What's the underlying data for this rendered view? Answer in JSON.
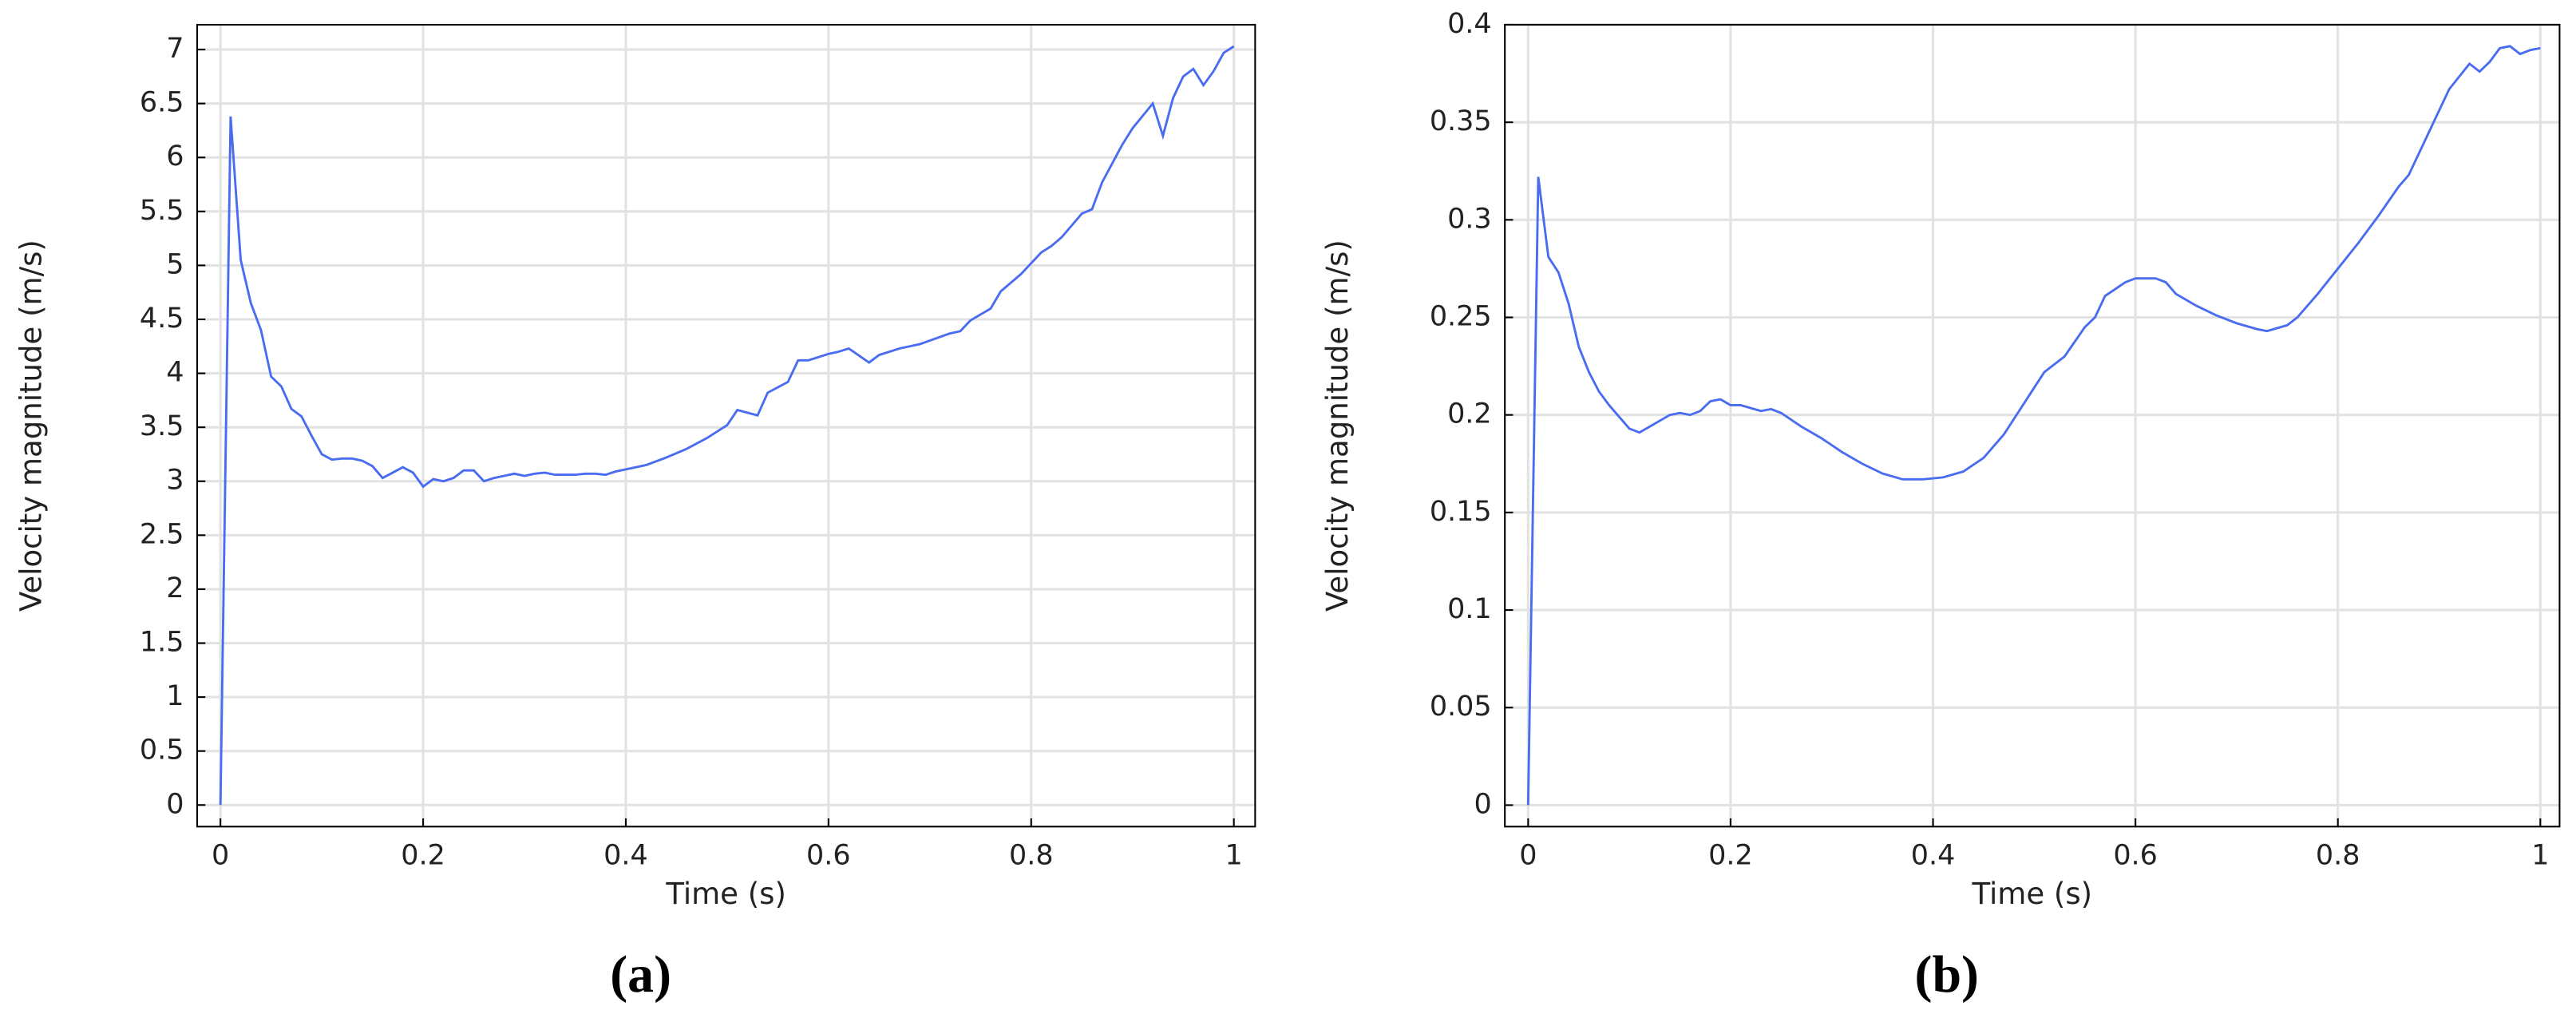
{
  "chart_data": [
    {
      "type": "line",
      "caption": "(a)",
      "xlabel": "Time (s)",
      "ylabel": "Velocity magnitude (m/s)",
      "color": "#4a6cf0",
      "grid": true,
      "xlim": [
        -0.023,
        1.021
      ],
      "ylim": [
        -0.2,
        7.23
      ],
      "xticks": [
        0,
        0.2,
        0.4,
        0.6,
        0.8,
        1
      ],
      "yticks": [
        0,
        0.5,
        1,
        1.5,
        2,
        2.5,
        3,
        3.5,
        4,
        4.5,
        5,
        5.5,
        6,
        6.5,
        7
      ],
      "x": [
        0,
        0.01,
        0.02,
        0.03,
        0.04,
        0.05,
        0.06,
        0.07,
        0.08,
        0.09,
        0.1,
        0.11,
        0.12,
        0.13,
        0.14,
        0.15,
        0.16,
        0.17,
        0.18,
        0.19,
        0.2,
        0.21,
        0.22,
        0.23,
        0.24,
        0.25,
        0.26,
        0.27,
        0.28,
        0.29,
        0.3,
        0.31,
        0.32,
        0.33,
        0.34,
        0.35,
        0.36,
        0.37,
        0.38,
        0.39,
        0.4,
        0.42,
        0.44,
        0.46,
        0.48,
        0.5,
        0.51,
        0.53,
        0.54,
        0.56,
        0.57,
        0.58,
        0.6,
        0.61,
        0.62,
        0.64,
        0.65,
        0.67,
        0.69,
        0.72,
        0.73,
        0.74,
        0.76,
        0.77,
        0.79,
        0.81,
        0.82,
        0.83,
        0.85,
        0.86,
        0.87,
        0.89,
        0.9,
        0.92,
        0.93,
        0.94,
        0.95,
        0.96,
        0.97,
        0.98,
        0.99,
        1.0
      ],
      "values": [
        0,
        6.38,
        5.05,
        4.65,
        4.4,
        3.97,
        3.88,
        3.67,
        3.6,
        3.42,
        3.25,
        3.2,
        3.21,
        3.21,
        3.19,
        3.14,
        3.03,
        3.08,
        3.13,
        3.08,
        2.95,
        3.02,
        3.0,
        3.03,
        3.1,
        3.1,
        3.0,
        3.03,
        3.05,
        3.07,
        3.05,
        3.07,
        3.08,
        3.06,
        3.06,
        3.06,
        3.07,
        3.07,
        3.06,
        3.09,
        3.11,
        3.15,
        3.22,
        3.3,
        3.4,
        3.52,
        3.66,
        3.61,
        3.82,
        3.92,
        4.12,
        4.12,
        4.18,
        4.2,
        4.23,
        4.1,
        4.17,
        4.23,
        4.27,
        4.37,
        4.39,
        4.49,
        4.6,
        4.76,
        4.92,
        5.12,
        5.18,
        5.26,
        5.48,
        5.52,
        5.77,
        6.12,
        6.27,
        6.5,
        6.2,
        6.55,
        6.75,
        6.82,
        6.67,
        6.8,
        6.97,
        7.03
      ]
    },
    {
      "type": "line",
      "caption": "(b)",
      "xlabel": "Time (s)",
      "ylabel": "Velocity magnitude (m/s)",
      "color": "#4a6cf0",
      "grid": true,
      "xlim": [
        -0.023,
        1.019
      ],
      "ylim": [
        -0.011,
        0.4
      ],
      "xticks": [
        0,
        0.2,
        0.4,
        0.6,
        0.8,
        1
      ],
      "yticks": [
        0,
        0.05,
        0.1,
        0.15,
        0.2,
        0.25,
        0.3,
        0.35,
        0.4
      ],
      "x": [
        0,
        0.01,
        0.02,
        0.03,
        0.04,
        0.05,
        0.06,
        0.07,
        0.08,
        0.09,
        0.1,
        0.11,
        0.12,
        0.14,
        0.15,
        0.16,
        0.17,
        0.18,
        0.19,
        0.2,
        0.21,
        0.23,
        0.24,
        0.25,
        0.27,
        0.29,
        0.31,
        0.33,
        0.35,
        0.37,
        0.39,
        0.41,
        0.43,
        0.45,
        0.47,
        0.49,
        0.51,
        0.53,
        0.55,
        0.56,
        0.57,
        0.59,
        0.6,
        0.62,
        0.63,
        0.64,
        0.66,
        0.68,
        0.7,
        0.72,
        0.73,
        0.75,
        0.76,
        0.78,
        0.8,
        0.82,
        0.84,
        0.86,
        0.87,
        0.89,
        0.91,
        0.93,
        0.94,
        0.95,
        0.96,
        0.97,
        0.98,
        0.99,
        1.0
      ],
      "values": [
        0,
        0.322,
        0.281,
        0.273,
        0.257,
        0.235,
        0.222,
        0.212,
        0.205,
        0.199,
        0.193,
        0.191,
        0.194,
        0.2,
        0.201,
        0.2,
        0.202,
        0.207,
        0.208,
        0.205,
        0.205,
        0.202,
        0.203,
        0.201,
        0.194,
        0.188,
        0.181,
        0.175,
        0.17,
        0.167,
        0.167,
        0.168,
        0.171,
        0.178,
        0.19,
        0.206,
        0.222,
        0.23,
        0.245,
        0.25,
        0.261,
        0.268,
        0.27,
        0.27,
        0.268,
        0.262,
        0.256,
        0.251,
        0.247,
        0.244,
        0.243,
        0.246,
        0.25,
        0.262,
        0.275,
        0.288,
        0.302,
        0.317,
        0.323,
        0.345,
        0.367,
        0.38,
        0.376,
        0.381,
        0.388,
        0.389,
        0.385,
        0.387,
        0.388
      ]
    }
  ]
}
